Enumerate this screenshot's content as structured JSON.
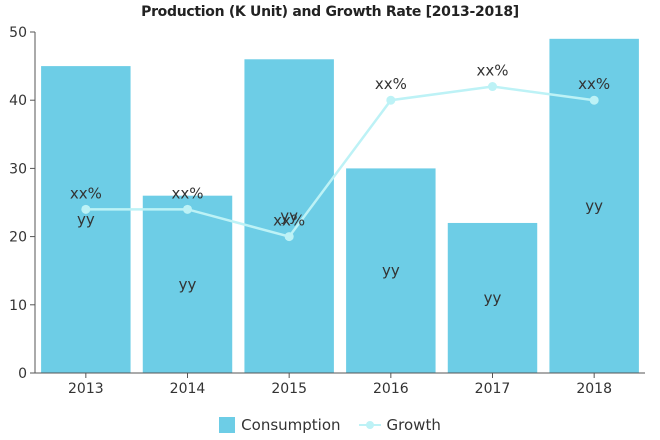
{
  "chart_data": {
    "type": "bar",
    "title": "Production (K Unit) and Growth Rate [2013-2018]",
    "categories": [
      "2013",
      "2014",
      "2015",
      "2016",
      "2017",
      "2018"
    ],
    "ylim": [
      0,
      50
    ],
    "yticks": [
      0,
      10,
      20,
      30,
      40,
      50
    ],
    "grid": false,
    "legend_position": "bottom",
    "series": [
      {
        "name": "Consumption",
        "type": "bar",
        "values": [
          45,
          26,
          46,
          30,
          22,
          49
        ],
        "labels": [
          "yy",
          "yy",
          "yy",
          "yy",
          "yy",
          "yy"
        ],
        "color": "#6dcde6"
      },
      {
        "name": "Growth",
        "type": "line",
        "values": [
          24,
          24,
          20,
          40,
          42,
          40
        ],
        "labels": [
          "xx%",
          "xx%",
          "xx%",
          "xx%",
          "xx%",
          "xx%"
        ],
        "color": "#bdf2f6"
      }
    ]
  }
}
